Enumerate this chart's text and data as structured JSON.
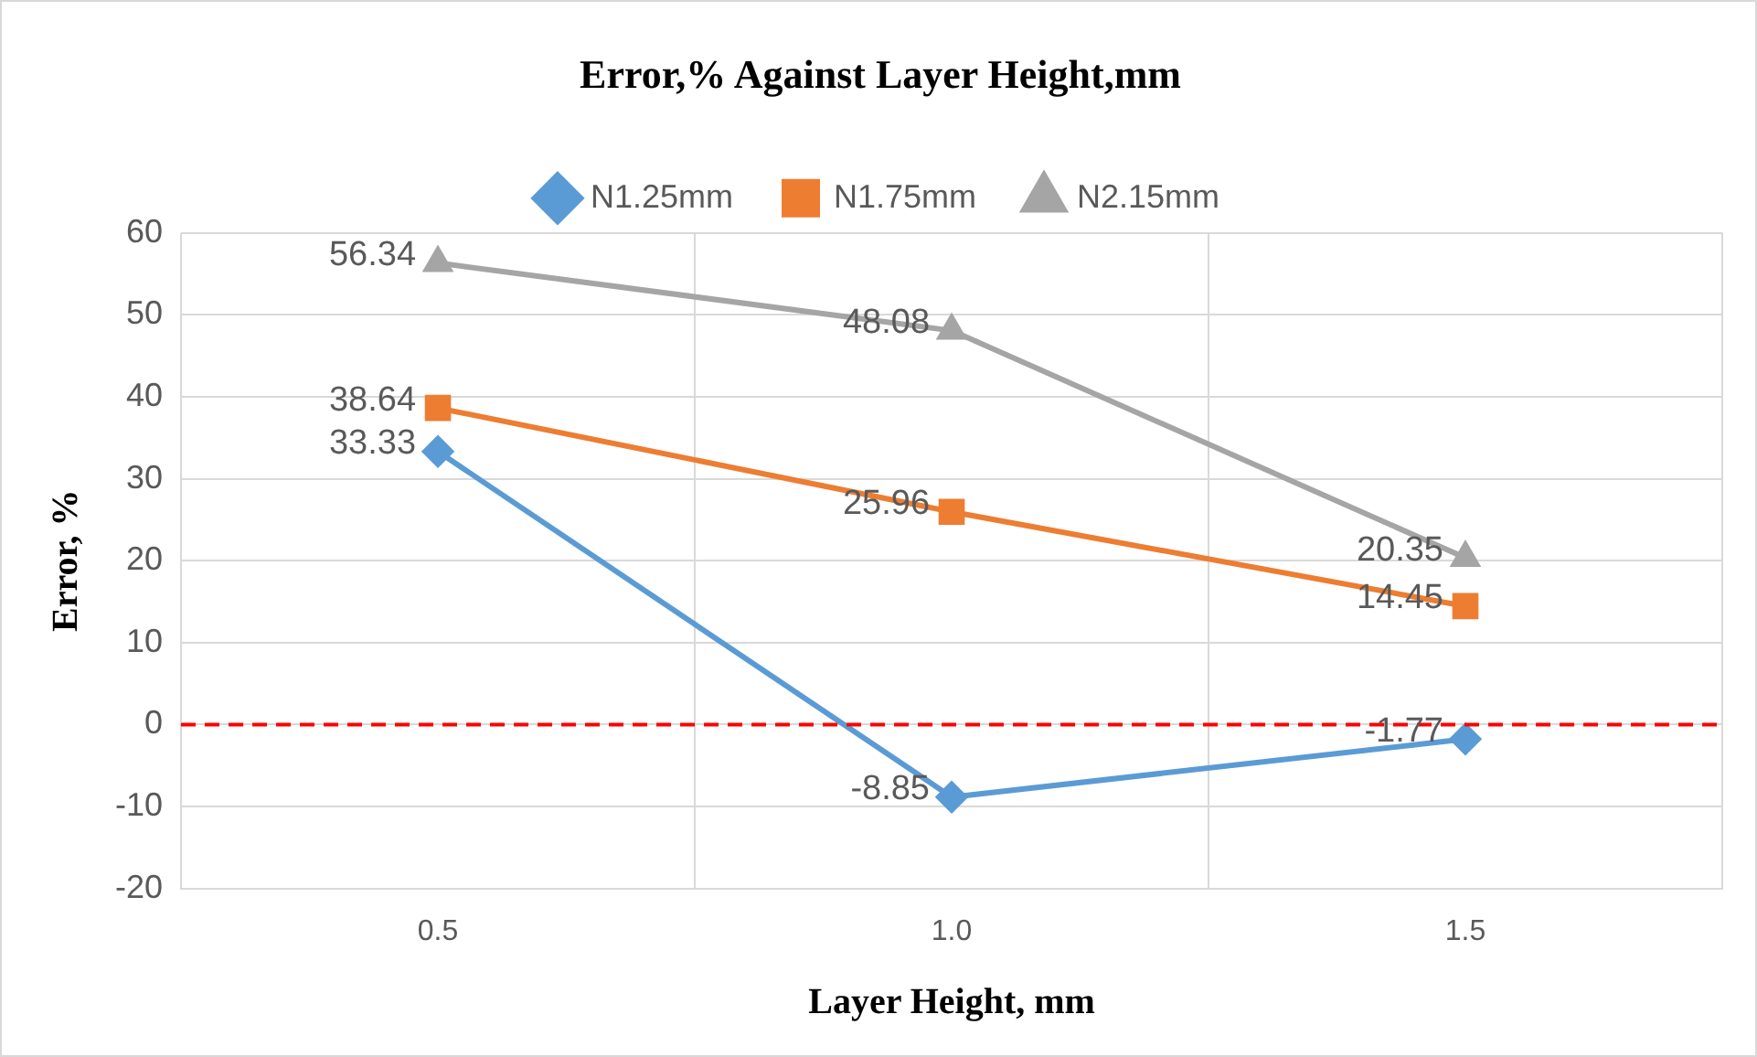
{
  "chart_data": {
    "type": "line",
    "title": "Error,% Against Layer Height,mm",
    "xlabel": "Layer Height, mm",
    "ylabel": "Error, %",
    "categories": [
      "0.5",
      "1.0",
      "1.5"
    ],
    "series": [
      {
        "name": "N1.25mm",
        "color": "#5b9bd5",
        "marker": "diamond",
        "values": [
          33.33,
          -8.85,
          -1.77
        ]
      },
      {
        "name": "N1.75mm",
        "color": "#ed7d31",
        "marker": "square",
        "values": [
          38.64,
          25.96,
          14.45
        ]
      },
      {
        "name": "N2.15mm",
        "color": "#a5a5a5",
        "marker": "triangle",
        "values": [
          56.34,
          48.08,
          20.35
        ]
      }
    ],
    "ylim": [
      -20,
      60
    ],
    "yticks": [
      -20,
      -10,
      0,
      10,
      20,
      30,
      40,
      50,
      60
    ],
    "grid": true,
    "legend": "top",
    "data_labels": true,
    "ref_lines": [
      {
        "axis": "y",
        "value": 0,
        "color": "#ff0000",
        "line_style": "dashed"
      }
    ]
  }
}
